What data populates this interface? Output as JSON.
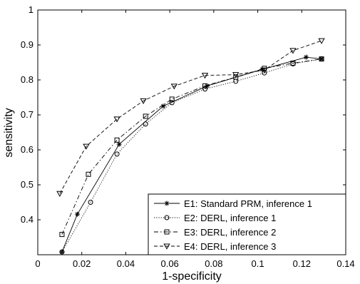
{
  "chart_data": {
    "type": "line",
    "title": "",
    "xlabel": "1-specificity",
    "ylabel": "sensitivity",
    "xlim": [
      0,
      0.14
    ],
    "ylim": [
      0.3,
      1
    ],
    "xticks": [
      0,
      0.02,
      0.04,
      0.06,
      0.08,
      0.1,
      0.12,
      0.14
    ],
    "xtick_labels": [
      "0",
      "0.02",
      "0.04",
      "0.06",
      "0.08",
      "0.1",
      "0.12",
      "0.14"
    ],
    "yticks": [
      0.4,
      0.5,
      0.6,
      0.7,
      0.8,
      0.9,
      1
    ],
    "ytick_labels": [
      "0.4",
      "0.5",
      "0.6",
      "0.7",
      "0.8",
      "0.9",
      "1"
    ],
    "grid": false,
    "legend_position": "bottom-right",
    "series": [
      {
        "name": "E1: Standard PRM, inference 1",
        "marker": "star",
        "dash": "solid",
        "x": [
          0.011,
          0.018,
          0.037,
          0.057,
          0.077,
          0.102,
          0.122,
          0.129
        ],
        "y": [
          0.308,
          0.416,
          0.616,
          0.725,
          0.783,
          0.83,
          0.865,
          0.86
        ]
      },
      {
        "name": "E2: DERL, inference 1",
        "marker": "circle",
        "dash": "dotted",
        "x": [
          0.011,
          0.024,
          0.036,
          0.049,
          0.061,
          0.076,
          0.09,
          0.103,
          0.116,
          0.129
        ],
        "y": [
          0.308,
          0.45,
          0.588,
          0.674,
          0.735,
          0.774,
          0.796,
          0.82,
          0.846,
          0.86
        ]
      },
      {
        "name": "E3: DERL, inference 2",
        "marker": "square",
        "dash": "dashdot",
        "x": [
          0.011,
          0.023,
          0.036,
          0.049,
          0.061,
          0.076,
          0.09,
          0.103,
          0.116,
          0.129
        ],
        "y": [
          0.358,
          0.53,
          0.628,
          0.696,
          0.745,
          0.783,
          0.808,
          0.833,
          0.848,
          0.86
        ]
      },
      {
        "name": "E4: DERL, inference 3",
        "marker": "triangle-down",
        "dash": "dashed",
        "x": [
          0.01,
          0.022,
          0.036,
          0.048,
          0.062,
          0.076,
          0.09,
          0.103,
          0.116,
          0.129
        ],
        "y": [
          0.475,
          0.61,
          0.688,
          0.74,
          0.782,
          0.813,
          0.815,
          0.828,
          0.884,
          0.912
        ]
      }
    ]
  }
}
